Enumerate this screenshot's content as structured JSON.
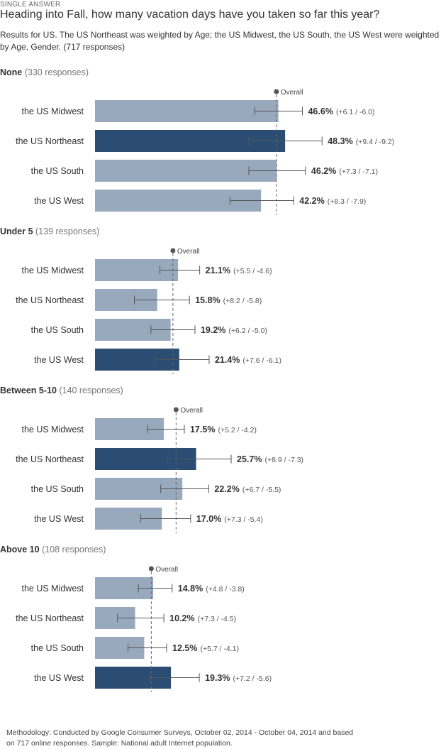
{
  "header": {
    "kicker": "SINGLE ANSWER",
    "question": "Heading into Fall, how many vacation days have you taken so far this year?",
    "subtitle": "Results for US. The US Northeast was weighted by Age; the US Midwest, the US South, the US West were weighted by Age, Gender. (717 responses)"
  },
  "footer": {
    "methodology": "Methodology: Conducted by Google Consumer Surveys, October 02, 2014 - October 04, 2014 and based on 717 online responses. Sample: National adult Internet population."
  },
  "colors": {
    "bar_light": "#98a9be",
    "bar_dark": "#2b4d74",
    "error_bar": "#555555",
    "overall_line": "#666666"
  },
  "chart_data": {
    "type": "bar",
    "orientation": "horizontal",
    "reference_label": "Overall",
    "groups": [
      {
        "title": "None",
        "responses": "(330 responses)",
        "overall": 46.1,
        "rows": [
          {
            "label": "the US Midwest",
            "value": 46.6,
            "value_text": "46.6%",
            "ci_text": "(+6.1 / -6.0)",
            "plus": 6.1,
            "minus": 6.0,
            "highlight": false
          },
          {
            "label": "the US Northeast",
            "value": 48.3,
            "value_text": "48.3%",
            "ci_text": "(+9.4 / -9.2)",
            "plus": 9.4,
            "minus": 9.2,
            "highlight": true
          },
          {
            "label": "the US South",
            "value": 46.2,
            "value_text": "46.2%",
            "ci_text": "(+7.3 / -7.1)",
            "plus": 7.3,
            "minus": 7.1,
            "highlight": false
          },
          {
            "label": "the US West",
            "value": 42.2,
            "value_text": "42.2%",
            "ci_text": "(+8.3 / -7.9)",
            "plus": 8.3,
            "minus": 7.9,
            "highlight": false
          }
        ]
      },
      {
        "title": "Under 5",
        "responses": "(139 responses)",
        "overall": 19.8,
        "rows": [
          {
            "label": "the US Midwest",
            "value": 21.1,
            "value_text": "21.1%",
            "ci_text": "(+5.5 / -4.6)",
            "plus": 5.5,
            "minus": 4.6,
            "highlight": false
          },
          {
            "label": "the US Northeast",
            "value": 15.8,
            "value_text": "15.8%",
            "ci_text": "(+8.2 / -5.8)",
            "plus": 8.2,
            "minus": 5.8,
            "highlight": false
          },
          {
            "label": "the US South",
            "value": 19.2,
            "value_text": "19.2%",
            "ci_text": "(+6.2 / -5.0)",
            "plus": 6.2,
            "minus": 5.0,
            "highlight": false
          },
          {
            "label": "the US West",
            "value": 21.4,
            "value_text": "21.4%",
            "ci_text": "(+7.6 / -6.1)",
            "plus": 7.6,
            "minus": 6.1,
            "highlight": true
          }
        ]
      },
      {
        "title": "Between 5-10",
        "responses": "(140 responses)",
        "overall": 20.6,
        "rows": [
          {
            "label": "the US Midwest",
            "value": 17.5,
            "value_text": "17.5%",
            "ci_text": "(+5.2 / -4.2)",
            "plus": 5.2,
            "minus": 4.2,
            "highlight": false
          },
          {
            "label": "the US Northeast",
            "value": 25.7,
            "value_text": "25.7%",
            "ci_text": "(+8.9 / -7.3)",
            "plus": 8.9,
            "minus": 7.3,
            "highlight": true
          },
          {
            "label": "the US South",
            "value": 22.2,
            "value_text": "22.2%",
            "ci_text": "(+6.7 / -5.5)",
            "plus": 6.7,
            "minus": 5.5,
            "highlight": false
          },
          {
            "label": "the US West",
            "value": 17.0,
            "value_text": "17.0%",
            "ci_text": "(+7.3 / -5.4)",
            "plus": 7.3,
            "minus": 5.4,
            "highlight": false
          }
        ]
      },
      {
        "title": "Above 10",
        "responses": "(108 responses)",
        "overall": 14.3,
        "rows": [
          {
            "label": "the US Midwest",
            "value": 14.8,
            "value_text": "14.8%",
            "ci_text": "(+4.8 / -3.8)",
            "plus": 4.8,
            "minus": 3.8,
            "highlight": false
          },
          {
            "label": "the US Northeast",
            "value": 10.2,
            "value_text": "10.2%",
            "ci_text": "(+7.3 / -4.5)",
            "plus": 7.3,
            "minus": 4.5,
            "highlight": false
          },
          {
            "label": "the US South",
            "value": 12.5,
            "value_text": "12.5%",
            "ci_text": "(+5.7 / -4.1)",
            "plus": 5.7,
            "minus": 4.1,
            "highlight": false
          },
          {
            "label": "the US West",
            "value": 19.3,
            "value_text": "19.3%",
            "ci_text": "(+7.2 / -5.6)",
            "plus": 7.2,
            "minus": 5.6,
            "highlight": true
          }
        ]
      }
    ]
  }
}
